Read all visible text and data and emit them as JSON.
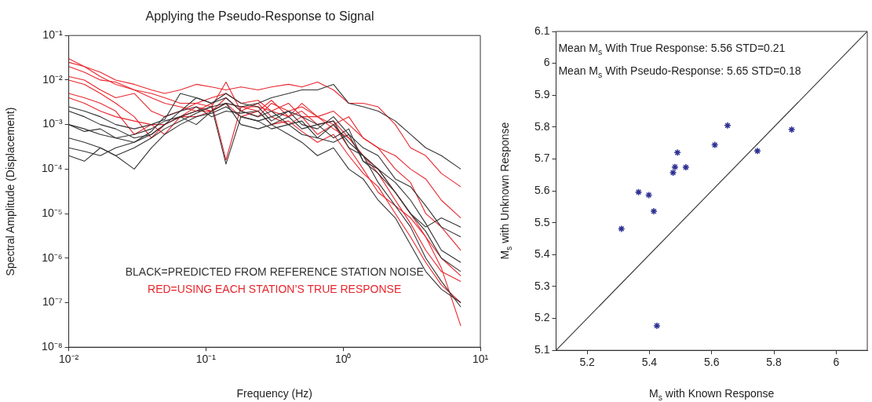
{
  "chart_data": [
    {
      "type": "line",
      "title": "Applying the Pseudo-Response to Signal",
      "xlabel": "Frequency (Hz)",
      "ylabel": "Spectral Amplitude (Displacement)",
      "log": "xy",
      "x": [
        0.01,
        0.013,
        0.017,
        0.022,
        0.03,
        0.04,
        0.05,
        0.065,
        0.085,
        0.11,
        0.14,
        0.18,
        0.24,
        0.3,
        0.4,
        0.5,
        0.65,
        0.85,
        1.1,
        1.4,
        1.8,
        2.4,
        3.1,
        4,
        5.2,
        7.2
      ],
      "xlim": [
        0.01,
        10
      ],
      "ylim": [
        1e-08,
        0.1
      ],
      "xticks": [
        {
          "value": 0.01,
          "label": "10⁻²"
        },
        {
          "value": 0.1,
          "label": "10⁻¹"
        },
        {
          "value": 1,
          "label": "10⁰"
        },
        {
          "value": 10,
          "label": "10¹"
        }
      ],
      "yticks": [
        {
          "value": 1e-08,
          "label": "10⁻⁸"
        },
        {
          "value": 1e-07,
          "label": "10⁻⁷"
        },
        {
          "value": 1e-06,
          "label": "10⁻⁶"
        },
        {
          "value": 1e-05,
          "label": "10⁻⁵"
        },
        {
          "value": 0.0001,
          "label": "10⁻⁴"
        },
        {
          "value": 0.001,
          "label": "10⁻³"
        },
        {
          "value": 0.01,
          "label": "10⁻²"
        },
        {
          "value": 0.1,
          "label": "10⁻¹"
        }
      ],
      "series": [
        {
          "color": "#333333",
          "values": [
            0.001,
            0.0008,
            0.0006,
            0.0005,
            0.0006,
            0.0008,
            0.0012,
            0.0015,
            0.002,
            0.0025,
            0.003,
            0.0025,
            0.003,
            0.004,
            0.005,
            0.006,
            0.006,
            0.008,
            0.003,
            0.0025,
            0.002,
            0.0012,
            0.0006,
            0.0003,
            0.0002,
            0.0001
          ]
        },
        {
          "color": "#333333",
          "values": [
            0.0002,
            0.00015,
            0.0003,
            0.0002,
            0.0001,
            0.0003,
            0.0006,
            0.001,
            0.0015,
            0.0018,
            0.0025,
            0.0015,
            0.0012,
            0.0008,
            0.001,
            0.0006,
            0.0005,
            0.0004,
            0.0006,
            0.0003,
            0.0002,
            6e-05,
            4e-05,
            1.5e-05,
            5e-06,
            3e-06
          ]
        },
        {
          "color": "#333333",
          "values": [
            0.0005,
            0.0004,
            0.0003,
            0.0002,
            0.0003,
            0.0005,
            0.0008,
            0.0012,
            0.0018,
            0.0025,
            0.00013,
            0.0015,
            0.0012,
            0.0015,
            0.002,
            0.0015,
            0.001,
            0.0005,
            0.0008,
            0.00015,
            8e-05,
            3e-05,
            1e-05,
            4e-06,
            1e-06,
            5e-07
          ]
        },
        {
          "color": "#333333",
          "values": [
            0.002,
            0.0015,
            0.001,
            0.0008,
            0.0005,
            0.0006,
            0.001,
            0.002,
            0.004,
            0.003,
            0.004,
            0.002,
            0.0015,
            0.002,
            0.001,
            0.0012,
            0.0005,
            0.001,
            0.0004,
            0.0002,
            0.0001,
            5e-05,
            2e-05,
            6e-06,
            1.5e-06,
            8e-07
          ]
        },
        {
          "color": "#333333",
          "values": [
            0.0003,
            0.00025,
            0.0002,
            0.0003,
            0.0004,
            0.0006,
            0.001,
            0.0015,
            0.001,
            0.002,
            0.003,
            0.001,
            0.0008,
            0.001,
            0.0006,
            0.0004,
            0.0002,
            0.0003,
            0.0001,
            6e-05,
            2e-05,
            8e-06,
            2e-06,
            5e-07,
            2e-07,
            1e-07
          ]
        },
        {
          "color": "#333333",
          "values": [
            0.001,
            0.0007,
            0.0008,
            0.0005,
            0.0004,
            0.0007,
            0.0015,
            0.002,
            0.0025,
            0.0015,
            0.002,
            0.0018,
            0.002,
            0.001,
            0.0015,
            0.0008,
            0.001,
            0.0012,
            0.0003,
            0.0002,
            5e-05,
            1.5e-05,
            5e-06,
            1e-06,
            3e-07,
            8e-08
          ]
        },
        {
          "color": "#333333",
          "values": [
            0.0025,
            0.002,
            0.0015,
            0.001,
            0.0008,
            0.001,
            0.0013,
            0.005,
            0.004,
            0.003,
            0.005,
            0.003,
            0.0025,
            0.0012,
            0.002,
            0.001,
            0.0008,
            0.0015,
            0.0006,
            0.00015,
            0.0001,
            3e-05,
            1e-05,
            5e-06,
            8e-06,
            5e-06
          ]
        },
        {
          "color": "#e8262d",
          "values": [
            0.025,
            0.02,
            0.015,
            0.01,
            0.008,
            0.006,
            0.005,
            0.006,
            0.008,
            0.007,
            0.006,
            0.007,
            0.006,
            0.007,
            0.008,
            0.007,
            0.009,
            0.006,
            0.003,
            0.003,
            0.0025,
            0.001,
            0.0003,
            0.0002,
            8e-05,
            4e-05
          ]
        },
        {
          "color": "#e8262d",
          "values": [
            0.012,
            0.01,
            0.006,
            0.004,
            0.005,
            0.002,
            0.0015,
            0.002,
            0.003,
            0.0025,
            0.009,
            0.002,
            0.0015,
            0.003,
            0.002,
            0.0025,
            0.0015,
            0.001,
            0.0015,
            0.0005,
            0.0003,
            0.0001,
            5e-05,
            1e-05,
            5e-06,
            1.5e-06
          ]
        },
        {
          "color": "#e8262d",
          "values": [
            0.03,
            0.02,
            0.012,
            0.008,
            0.006,
            0.004,
            0.003,
            0.0025,
            0.002,
            0.003,
            0.00016,
            0.0025,
            0.002,
            0.0035,
            0.0015,
            0.002,
            0.001,
            0.0012,
            0.0005,
            0.0002,
            8e-05,
            2e-05,
            6e-06,
            1.5e-06,
            5e-07,
            3e-07
          ]
        },
        {
          "color": "#e8262d",
          "values": [
            0.005,
            0.004,
            0.003,
            0.002,
            0.0006,
            0.001,
            0.001,
            0.0015,
            0.0025,
            0.002,
            0.004,
            0.002,
            0.003,
            0.0015,
            0.001,
            0.0015,
            0.0006,
            0.001,
            0.0003,
            0.0001,
            3e-05,
            1.5e-05,
            8e-06,
            3e-06,
            6e-07,
            3e-08
          ]
        },
        {
          "color": "#e8262d",
          "values": [
            0.01,
            0.008,
            0.005,
            0.003,
            0.0015,
            0.0005,
            0.001,
            0.0015,
            0.0015,
            0.002,
            0.003,
            0.0015,
            0.002,
            0.001,
            0.0012,
            0.0007,
            0.0004,
            0.0006,
            0.0002,
            8e-05,
            4e-05,
            1e-05,
            3e-06,
            8e-07,
            2.5e-07,
            1e-07
          ]
        },
        {
          "color": "#e8262d",
          "values": [
            0.004,
            0.003,
            0.002,
            0.0015,
            0.0012,
            0.001,
            0.0006,
            0.0015,
            0.002,
            0.002,
            0.003,
            0.0025,
            0.0025,
            0.002,
            0.0015,
            0.003,
            0.0015,
            0.002,
            0.001,
            0.0005,
            0.0003,
            0.0002,
            0.0001,
            6e-05,
            2e-05,
            8e-06
          ]
        },
        {
          "color": "#e8262d",
          "values": [
            0.02,
            0.015,
            0.01,
            0.009,
            0.006,
            0.005,
            0.004,
            0.003,
            0.003,
            0.004,
            0.005,
            0.003,
            0.0035,
            0.002,
            0.003,
            0.0015,
            0.0015,
            0.0008,
            0.0005,
            0.0002,
            0.0001,
            3e-05,
            1e-05,
            3e-06,
            1e-06,
            4e-07
          ]
        }
      ],
      "annotations": [
        "BLACK=PREDICTED FROM REFERENCE STATION NOISE",
        "RED=USING EACH STATION’S TRUE RESPONSE"
      ]
    },
    {
      "type": "scatter",
      "xlabel": "M$_{s}$ with Known Response",
      "ylabel": "M$_{s}$ with Unknown Response",
      "xlim": [
        5.1,
        6.1
      ],
      "ylim": [
        5.1,
        6.1
      ],
      "xticks": [
        5.2,
        5.4,
        5.6,
        5.8,
        6
      ],
      "yticks": [
        5.1,
        5.2,
        5.3,
        5.4,
        5.5,
        5.6,
        5.7,
        5.8,
        5.9,
        6,
        6.1
      ],
      "series": [
        {
          "type": "scatter",
          "color": "#2e3192",
          "marker": "cross",
          "x": [
            5.31,
            5.365,
            5.398,
            5.414,
            5.424,
            5.476,
            5.482,
            5.49,
            5.517,
            5.61,
            5.651,
            5.747,
            5.857
          ],
          "values": [
            5.481,
            5.596,
            5.587,
            5.536,
            5.177,
            5.657,
            5.675,
            5.72,
            5.674,
            5.744,
            5.805,
            5.725,
            5.792
          ]
        },
        {
          "type": "line",
          "color": "#333333",
          "marker": "none",
          "x": [
            5.1,
            6.1
          ],
          "values": [
            5.1,
            6.1
          ]
        }
      ],
      "annotations": [
        "Mean M$_{s}$ With True Response: 5.56 STD=0.21",
        "Mean M$_{s}$ With Pseudo-Response: 5.65 STD=0.18"
      ]
    }
  ]
}
